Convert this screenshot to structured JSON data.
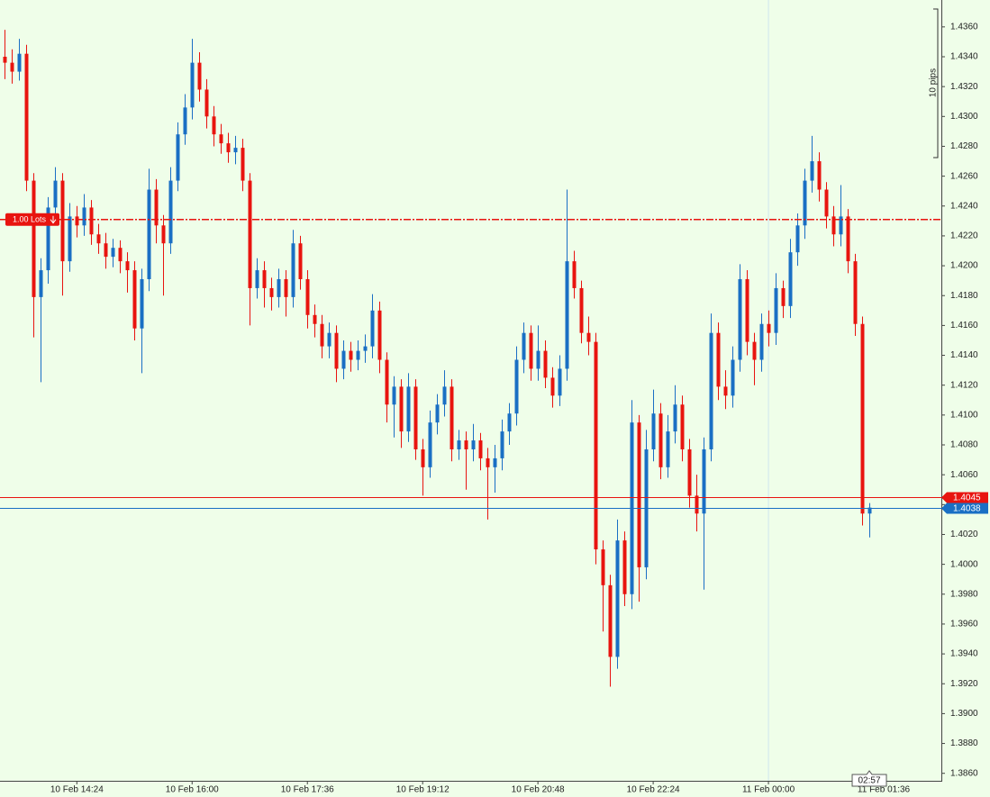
{
  "chart_data": {
    "type": "candlestick",
    "x": [
      "10 Feb 13:24",
      "10 Feb 13:30",
      "10 Feb 13:36",
      "10 Feb 13:42",
      "10 Feb 13:48",
      "10 Feb 13:54",
      "10 Feb 14:00",
      "10 Feb 14:06",
      "10 Feb 14:12",
      "10 Feb 14:18",
      "10 Feb 14:24",
      "10 Feb 14:30",
      "10 Feb 14:36",
      "10 Feb 14:42",
      "10 Feb 14:48",
      "10 Feb 14:54",
      "10 Feb 15:00",
      "10 Feb 15:06",
      "10 Feb 15:12",
      "10 Feb 15:18",
      "10 Feb 15:24",
      "10 Feb 15:30",
      "10 Feb 15:36",
      "10 Feb 15:42",
      "10 Feb 15:48",
      "10 Feb 15:54",
      "10 Feb 16:00",
      "10 Feb 16:06",
      "10 Feb 16:12",
      "10 Feb 16:18",
      "10 Feb 16:24",
      "10 Feb 16:30",
      "10 Feb 16:36",
      "10 Feb 16:42",
      "10 Feb 16:48",
      "10 Feb 16:54",
      "10 Feb 17:00",
      "10 Feb 17:06",
      "10 Feb 17:12",
      "10 Feb 17:18",
      "10 Feb 17:24",
      "10 Feb 17:30",
      "10 Feb 17:36",
      "10 Feb 17:42",
      "10 Feb 17:48",
      "10 Feb 17:54",
      "10 Feb 18:00",
      "10 Feb 18:06",
      "10 Feb 18:12",
      "10 Feb 18:18",
      "10 Feb 18:24",
      "10 Feb 18:30",
      "10 Feb 18:36",
      "10 Feb 18:42",
      "10 Feb 18:48",
      "10 Feb 18:54",
      "10 Feb 19:00",
      "10 Feb 19:06",
      "10 Feb 19:12",
      "10 Feb 19:18",
      "10 Feb 19:24",
      "10 Feb 19:30",
      "10 Feb 19:36",
      "10 Feb 19:42",
      "10 Feb 19:48",
      "10 Feb 19:54",
      "10 Feb 20:00",
      "10 Feb 20:06",
      "10 Feb 20:12",
      "10 Feb 20:18",
      "10 Feb 20:24",
      "10 Feb 20:30",
      "10 Feb 20:36",
      "10 Feb 20:42",
      "10 Feb 20:48",
      "10 Feb 20:54",
      "10 Feb 21:00",
      "10 Feb 21:06",
      "10 Feb 21:12",
      "10 Feb 21:18",
      "10 Feb 21:24",
      "10 Feb 21:30",
      "10 Feb 21:36",
      "10 Feb 21:42",
      "10 Feb 21:48",
      "10 Feb 21:54",
      "10 Feb 22:00",
      "10 Feb 22:06",
      "10 Feb 22:12",
      "10 Feb 22:18",
      "10 Feb 22:24",
      "10 Feb 22:30",
      "10 Feb 22:36",
      "10 Feb 22:42",
      "10 Feb 22:48",
      "10 Feb 22:54",
      "10 Feb 23:00",
      "10 Feb 23:06",
      "10 Feb 23:12",
      "10 Feb 23:18",
      "10 Feb 23:24",
      "10 Feb 23:30",
      "10 Feb 23:36",
      "10 Feb 23:42",
      "10 Feb 23:48",
      "10 Feb 23:54",
      "11 Feb 00:00",
      "11 Feb 00:06",
      "11 Feb 00:12",
      "11 Feb 00:18",
      "11 Feb 00:24",
      "11 Feb 00:30",
      "11 Feb 00:36",
      "11 Feb 00:42",
      "11 Feb 00:48",
      "11 Feb 00:54",
      "11 Feb 01:00",
      "11 Feb 01:06",
      "11 Feb 01:12",
      "11 Feb 01:18",
      "11 Feb 01:24"
    ],
    "open": [
      1.434,
      1.4336,
      1.433,
      1.4342,
      1.4257,
      1.4179,
      1.4197,
      1.4239,
      1.4257,
      1.4203,
      1.4233,
      1.4227,
      1.4239,
      1.4221,
      1.4215,
      1.4206,
      1.4212,
      1.4203,
      1.4197,
      1.4158,
      1.4191,
      1.4251,
      1.4227,
      1.4215,
      1.4257,
      1.4288,
      1.4306,
      1.4336,
      1.4318,
      1.43,
      1.4288,
      1.4282,
      1.4276,
      1.4279,
      1.4257,
      1.4185,
      1.4197,
      1.4185,
      1.4179,
      1.4191,
      1.4179,
      1.4215,
      1.4191,
      1.4167,
      1.4161,
      1.4146,
      1.4155,
      1.4131,
      1.4143,
      1.4137,
      1.4143,
      1.4146,
      1.417,
      1.4137,
      1.4107,
      1.4119,
      1.4089,
      1.4119,
      1.4077,
      1.4065,
      1.4095,
      1.4107,
      1.4119,
      1.4077,
      1.4083,
      1.4077,
      1.4083,
      1.4071,
      1.4065,
      1.4071,
      1.4089,
      1.4101,
      1.4137,
      1.4155,
      1.4131,
      1.4143,
      1.4125,
      1.4113,
      1.4131,
      1.4203,
      1.4185,
      1.4155,
      1.4149,
      1.401,
      1.3986,
      1.3938,
      1.4016,
      1.398,
      1.4095,
      1.3998,
      1.4077,
      1.4101,
      1.4065,
      1.4089,
      1.4107,
      1.4077,
      1.4046,
      1.4034,
      1.4077,
      1.4155,
      1.4119,
      1.4113,
      1.4137,
      1.4191,
      1.4149,
      1.4137,
      1.4161,
      1.4155,
      1.4185,
      1.4173,
      1.4209,
      1.4227,
      1.4257,
      1.427,
      1.4251,
      1.4233,
      1.4221,
      1.4233,
      1.4203,
      1.4161,
      1.4034
    ],
    "high": [
      1.4358,
      1.4345,
      1.4352,
      1.4348,
      1.4262,
      1.4205,
      1.4246,
      1.4266,
      1.4262,
      1.4242,
      1.424,
      1.4248,
      1.4244,
      1.4228,
      1.4222,
      1.4218,
      1.4217,
      1.4209,
      1.4203,
      1.4198,
      1.4265,
      1.4258,
      1.4234,
      1.4266,
      1.4296,
      1.4315,
      1.4352,
      1.4343,
      1.4325,
      1.4307,
      1.4295,
      1.4289,
      1.4287,
      1.4285,
      1.4262,
      1.4205,
      1.4203,
      1.4192,
      1.4198,
      1.4197,
      1.4224,
      1.422,
      1.4197,
      1.4174,
      1.4167,
      1.4162,
      1.416,
      1.415,
      1.4149,
      1.415,
      1.4154,
      1.4181,
      1.4176,
      1.4142,
      1.4126,
      1.4124,
      1.4128,
      1.4124,
      1.4084,
      1.4103,
      1.4114,
      1.413,
      1.4124,
      1.409,
      1.4089,
      1.4094,
      1.4088,
      1.4078,
      1.408,
      1.4097,
      1.4108,
      1.4146,
      1.4162,
      1.416,
      1.416,
      1.415,
      1.4132,
      1.414,
      1.4251,
      1.421,
      1.419,
      1.4166,
      1.4155,
      1.4016,
      1.3993,
      1.403,
      1.4022,
      1.411,
      1.41,
      1.409,
      1.4117,
      1.4108,
      1.41,
      1.412,
      1.4113,
      1.4084,
      1.406,
      1.4085,
      1.4168,
      1.4162,
      1.413,
      1.4146,
      1.4201,
      1.4197,
      1.4155,
      1.4168,
      1.417,
      1.4195,
      1.419,
      1.4218,
      1.4235,
      1.4265,
      1.4287,
      1.4276,
      1.4256,
      1.424,
      1.4254,
      1.4238,
      1.4208,
      1.4166,
      1.4041
    ],
    "low": [
      1.4325,
      1.4322,
      1.4324,
      1.425,
      1.4152,
      1.4122,
      1.4188,
      1.4232,
      1.418,
      1.4196,
      1.4219,
      1.422,
      1.4214,
      1.4208,
      1.4198,
      1.4199,
      1.4195,
      1.4182,
      1.415,
      1.4128,
      1.4183,
      1.4215,
      1.418,
      1.4208,
      1.425,
      1.4281,
      1.4298,
      1.431,
      1.4292,
      1.428,
      1.4275,
      1.4269,
      1.4268,
      1.425,
      1.416,
      1.4178,
      1.4172,
      1.417,
      1.4172,
      1.4166,
      1.4172,
      1.4184,
      1.4158,
      1.4152,
      1.4138,
      1.4138,
      1.4122,
      1.4124,
      1.4129,
      1.413,
      1.4135,
      1.4138,
      1.4128,
      1.4095,
      1.4085,
      1.4078,
      1.4082,
      1.407,
      1.4046,
      1.4058,
      1.4087,
      1.4099,
      1.4069,
      1.407,
      1.405,
      1.4069,
      1.4063,
      1.403,
      1.4048,
      1.4063,
      1.408,
      1.4093,
      1.4128,
      1.4123,
      1.4123,
      1.4118,
      1.4105,
      1.4106,
      1.4123,
      1.4178,
      1.4148,
      1.414,
      1.4,
      1.3955,
      1.3918,
      1.393,
      1.3972,
      1.397,
      1.3975,
      1.399,
      1.4069,
      1.4057,
      1.4058,
      1.4081,
      1.4069,
      1.4038,
      1.4022,
      1.3983,
      1.4069,
      1.411,
      1.4104,
      1.4105,
      1.4129,
      1.414,
      1.412,
      1.4129,
      1.4146,
      1.4147,
      1.4165,
      1.4165,
      1.42,
      1.4218,
      1.4249,
      1.4243,
      1.4225,
      1.4213,
      1.4213,
      1.4195,
      1.4153,
      1.4026,
      1.4018
    ],
    "close": [
      1.4336,
      1.433,
      1.4342,
      1.4257,
      1.4179,
      1.4197,
      1.4239,
      1.4257,
      1.4203,
      1.4233,
      1.4227,
      1.4239,
      1.4221,
      1.4215,
      1.4206,
      1.4212,
      1.4203,
      1.4197,
      1.4158,
      1.4191,
      1.4251,
      1.4227,
      1.4215,
      1.4257,
      1.4288,
      1.4306,
      1.4336,
      1.4318,
      1.43,
      1.4288,
      1.4282,
      1.4276,
      1.4279,
      1.4257,
      1.4185,
      1.4197,
      1.4185,
      1.4179,
      1.4191,
      1.4179,
      1.4215,
      1.4191,
      1.4167,
      1.4161,
      1.4146,
      1.4155,
      1.4131,
      1.4143,
      1.4137,
      1.4143,
      1.4146,
      1.417,
      1.4137,
      1.4107,
      1.4119,
      1.4089,
      1.4119,
      1.4077,
      1.4065,
      1.4095,
      1.4107,
      1.4119,
      1.4077,
      1.4083,
      1.4077,
      1.4083,
      1.4071,
      1.4065,
      1.4071,
      1.4089,
      1.4101,
      1.4137,
      1.4155,
      1.4131,
      1.4143,
      1.4125,
      1.4113,
      1.4131,
      1.4203,
      1.4185,
      1.4155,
      1.4149,
      1.401,
      1.3986,
      1.3938,
      1.4016,
      1.398,
      1.4095,
      1.3998,
      1.4077,
      1.4101,
      1.4065,
      1.4089,
      1.4107,
      1.4077,
      1.4046,
      1.4034,
      1.4077,
      1.4155,
      1.4119,
      1.4113,
      1.4137,
      1.4191,
      1.4149,
      1.4137,
      1.4161,
      1.4155,
      1.4185,
      1.4173,
      1.4209,
      1.4227,
      1.4257,
      1.427,
      1.4251,
      1.4233,
      1.4221,
      1.4233,
      1.4203,
      1.4161,
      1.4034,
      1.4038
    ],
    "up_color": "#1a6fc4",
    "down_color": "#e8140f",
    "xlim": [
      "10 Feb 13:20",
      "11 Feb 02:24"
    ],
    "xticks": [
      "10 Feb 14:24",
      "10 Feb 16:00",
      "10 Feb 17:36",
      "10 Feb 19:12",
      "10 Feb 20:48",
      "10 Feb 22:24",
      "11 Feb 00:00",
      "11 Feb 01:36"
    ],
    "ylim": [
      1.3855,
      1.4378
    ],
    "yticks": [
      {
        "value": 1.386,
        "label": "1.3860"
      },
      {
        "value": 1.388,
        "label": "1.3880"
      },
      {
        "value": 1.39,
        "label": "1.3900"
      },
      {
        "value": 1.392,
        "label": "1.3920"
      },
      {
        "value": 1.394,
        "label": "1.3940"
      },
      {
        "value": 1.396,
        "label": "1.3960"
      },
      {
        "value": 1.398,
        "label": "1.3980"
      },
      {
        "value": 1.4,
        "label": "1.4000"
      },
      {
        "value": 1.402,
        "label": "1.4020"
      },
      {
        "value": 1.404,
        "label": "1.4040"
      },
      {
        "value": 1.406,
        "label": "1.4060"
      },
      {
        "value": 1.408,
        "label": "1.4080"
      },
      {
        "value": 1.41,
        "label": "1.4100"
      },
      {
        "value": 1.412,
        "label": "1.4120"
      },
      {
        "value": 1.414,
        "label": "1.4140"
      },
      {
        "value": 1.416,
        "label": "1.4160"
      },
      {
        "value": 1.418,
        "label": "1.4180"
      },
      {
        "value": 1.42,
        "label": "1.4200"
      },
      {
        "value": 1.422,
        "label": "1.4220"
      },
      {
        "value": 1.424,
        "label": "1.4240"
      },
      {
        "value": 1.426,
        "label": "1.4260"
      },
      {
        "value": 1.428,
        "label": "1.4280"
      },
      {
        "value": 1.43,
        "label": "1.4300"
      },
      {
        "value": 1.432,
        "label": "1.4320"
      },
      {
        "value": 1.434,
        "label": "1.4340"
      },
      {
        "value": 1.436,
        "label": "1.4360"
      }
    ],
    "position": {
      "label": "1.00 Lots",
      "price": 1.4231,
      "color": "#e8140f"
    },
    "ask": {
      "value": 1.4045,
      "color": "#e8140f"
    },
    "bid": {
      "value": 1.4038,
      "color": "#1a6fc4"
    },
    "scale_label": "10 pips",
    "countdown": "02:57"
  }
}
